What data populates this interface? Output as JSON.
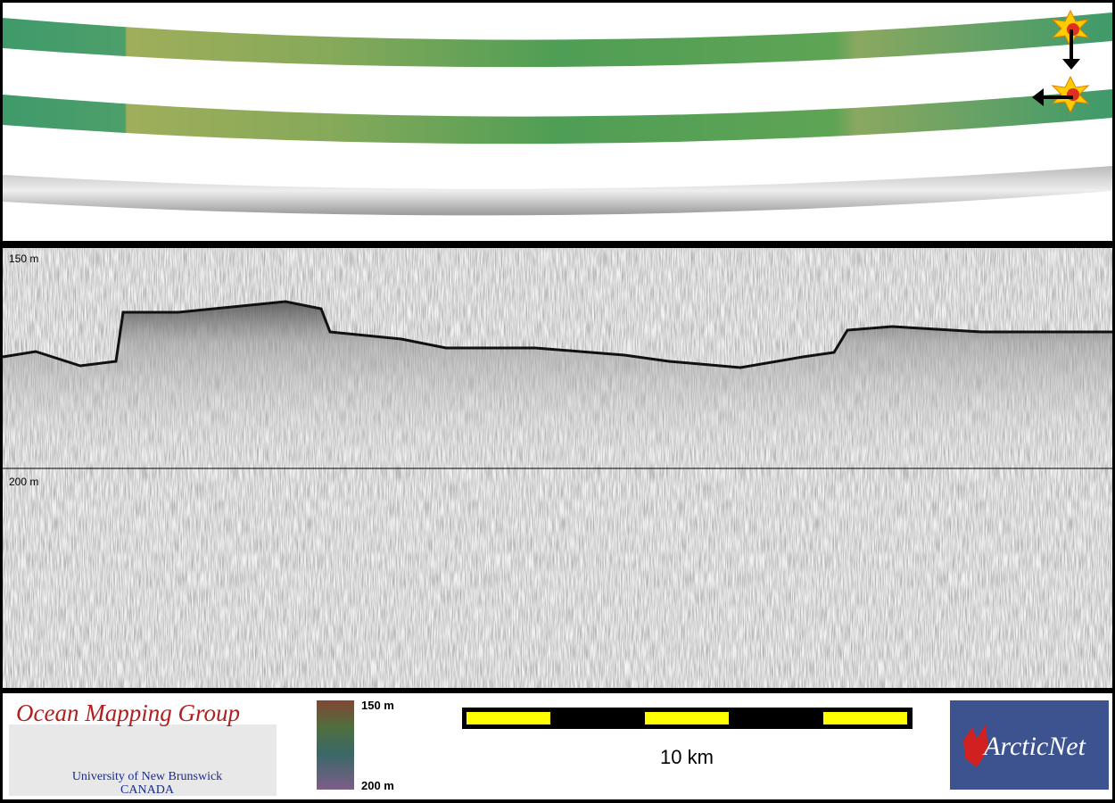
{
  "echogram": {
    "depth_labels": [
      "150 m",
      "200 m"
    ]
  },
  "legend": {
    "colorbar_labels": [
      "150 m",
      "200 m"
    ],
    "scale_bar_label": "10 km"
  },
  "logos": {
    "omg": {
      "title": "Ocean Mapping Group",
      "subtitle": "University of New Brunswick",
      "country": "CANADA"
    },
    "arcticnet": "ArcticNet"
  }
}
